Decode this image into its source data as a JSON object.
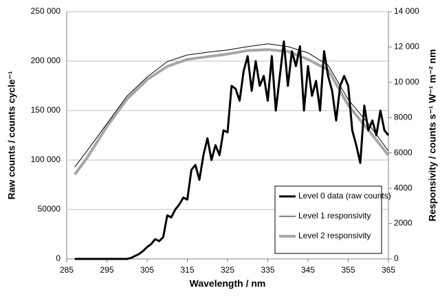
{
  "chart_data": {
    "type": "line",
    "x_label": "Wavelength / nm",
    "y_label": "Raw counts / counts cycle⁻¹",
    "y2_label": "Responsivity / counts s⁻¹ W⁻¹ m⁻² nm",
    "xlim": [
      285,
      365
    ],
    "xticks": [
      285,
      295,
      305,
      315,
      325,
      335,
      345,
      355,
      365
    ],
    "ylim": [
      0,
      250000
    ],
    "yticks": [
      0,
      50000,
      {
        "value": 100000,
        "label": "100 000"
      },
      {
        "value": 150000,
        "label": "150 000"
      },
      {
        "value": 200000,
        "label": "200 000"
      },
      {
        "value": 250000,
        "label": "250 000"
      }
    ],
    "y2lim": [
      0,
      14000
    ],
    "y2ticks": [
      0,
      2000,
      4000,
      6000,
      8000,
      {
        "value": 10000,
        "label": "10 000"
      },
      {
        "value": 12000,
        "label": "12 000"
      },
      {
        "value": 14000,
        "label": "14 000"
      }
    ],
    "grid": true,
    "legend": "lower right",
    "series": [
      {
        "name": "Level 0 data (raw counts)",
        "color": "#000000",
        "width": 3,
        "x": [
          287,
          288,
          289,
          290,
          291,
          292,
          293,
          294,
          295,
          296,
          297,
          298,
          299,
          300,
          301,
          302,
          303,
          304,
          305,
          306,
          307,
          308,
          309,
          310,
          311,
          312,
          313,
          314,
          315,
          316,
          317,
          318,
          319,
          320,
          321,
          322,
          323,
          324,
          325,
          326,
          327,
          328,
          329,
          330,
          331,
          332,
          333,
          334,
          335,
          336,
          337,
          338,
          339,
          340,
          341,
          342,
          343,
          344,
          345,
          346,
          347,
          348,
          349,
          350,
          351,
          352,
          353,
          354,
          355,
          356,
          357,
          358,
          359,
          360,
          361,
          362,
          363,
          364,
          365
        ],
        "values": [
          0,
          0,
          0,
          0,
          0,
          0,
          0,
          0,
          0,
          0,
          0,
          0,
          0,
          0,
          1000,
          3000,
          5000,
          8000,
          12000,
          15000,
          20000,
          18000,
          22000,
          44000,
          42000,
          50000,
          55000,
          62000,
          60000,
          90000,
          95000,
          80000,
          105000,
          122000,
          100000,
          115000,
          105000,
          130000,
          128000,
          175000,
          172000,
          160000,
          190000,
          205000,
          170000,
          200000,
          175000,
          185000,
          160000,
          205000,
          150000,
          185000,
          220000,
          175000,
          210000,
          195000,
          215000,
          150000,
          195000,
          165000,
          180000,
          150000,
          210000,
          185000,
          170000,
          140000,
          175000,
          185000,
          175000,
          130000,
          115000,
          97000,
          155000,
          130000,
          140000,
          125000,
          150000,
          130000,
          125000
        ]
      },
      {
        "name": "Level 1 responsivity",
        "color": "#000000",
        "width": 1,
        "axis": "y2",
        "x": [
          287,
          290,
          295,
          300,
          305,
          310,
          315,
          320,
          325,
          330,
          335,
          340,
          345,
          350,
          355,
          360,
          365
        ],
        "values": [
          5200,
          6100,
          7660,
          9220,
          10300,
          11170,
          11550,
          11700,
          11830,
          12020,
          12180,
          12020,
          11670,
          10970,
          9020,
          7660,
          6110
        ]
      },
      {
        "name": "Level 2 responsivity",
        "color": "#a6a6a6",
        "width": 4,
        "axis": "y2",
        "x": [
          287,
          290,
          295,
          300,
          305,
          310,
          315,
          320,
          325,
          330,
          335,
          340,
          345,
          350,
          355,
          360,
          365
        ],
        "values": [
          4780,
          5700,
          7500,
          9050,
          10150,
          10900,
          11300,
          11450,
          11600,
          11800,
          11850,
          11750,
          11300,
          10700,
          8700,
          7300,
          5870
        ]
      }
    ]
  }
}
